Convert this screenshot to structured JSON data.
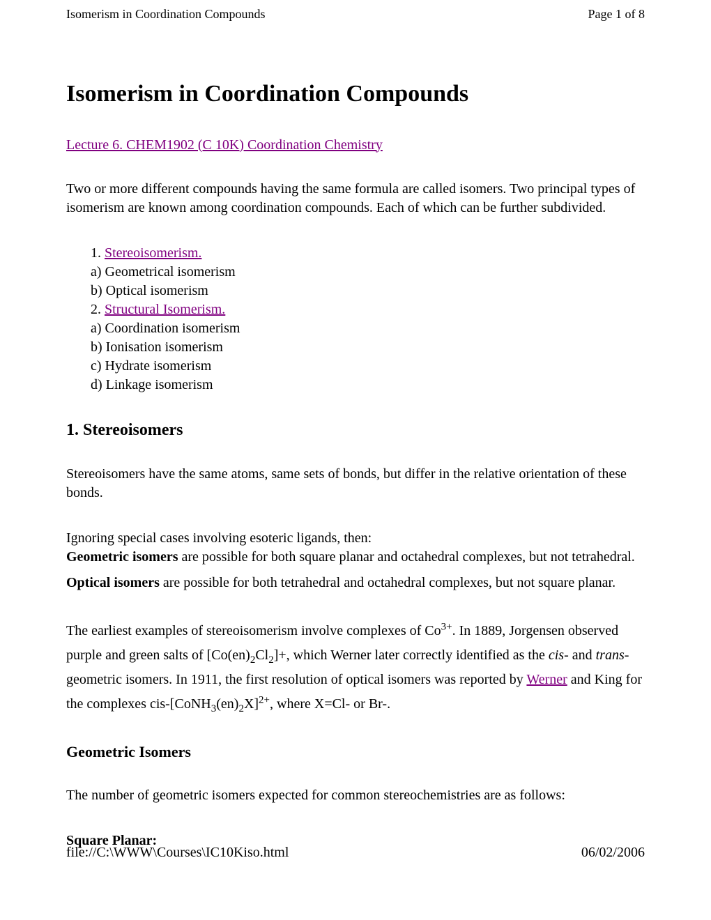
{
  "header": {
    "title": "Isomerism in Coordination Compounds",
    "page_info": "Page 1 of 8"
  },
  "main_title": "Isomerism in Coordination Compounds",
  "lecture_link": "Lecture 6. CHEM1902 (C 10K) Coordination Chemistry",
  "intro": "Two or more different compounds having the same formula are called isomers. Two principal types of isomerism are known among coordination compounds. Each of which can be further subdivided.",
  "outline": {
    "num1": "1. ",
    "link1": "Stereoisomerism.",
    "item1a": "a) Geometrical isomerism",
    "item1b": "b) Optical isomerism",
    "num2": "2. ",
    "link2": "Structural Isomerism.",
    "item2a": "a) Coordination isomerism",
    "item2b": "b) Ionisation isomerism",
    "item2c": "c) Hydrate isomerism",
    "item2d": "d) Linkage isomerism"
  },
  "section1": {
    "heading": "1. Stereoisomers",
    "p1": "Stereoisomers have the same atoms, same sets of bonds, but differ in the relative orientation of these bonds.",
    "p2_line1": "Ignoring special cases involving esoteric ligands, then:",
    "p2_bold": "Geometric isomers",
    "p2_rest": " are possible for both square planar and octahedral complexes, but not tetrahedral.",
    "p3_bold": "Optical isomers",
    "p3_rest": " are possible for both tetrahedral and octahedral complexes, but not square planar.",
    "p4_a": "The earliest examples of stereoisomerism involve complexes of Co",
    "p4_sup1": "3+",
    "p4_b": ". In 1889, Jorgensen observed purple and green salts of [Co(en)",
    "p4_sub1": "2",
    "p4_c": "Cl",
    "p4_sub2": "2",
    "p4_d": "]+, which Werner later correctly identified as the ",
    "p4_cis": "cis",
    "p4_e": "- and ",
    "p4_trans": "trans",
    "p4_f": "- geometric isomers. In 1911, the first resolution of optical isomers was reported by ",
    "p4_werner": "Werner",
    "p4_g": " and King for the complexes cis-[CoNH",
    "p4_sub3": "3",
    "p4_h": "(en)",
    "p4_sub4": "2",
    "p4_i": "X]",
    "p4_sup2": "2+",
    "p4_j": ", where X=Cl- or Br-."
  },
  "section_geo": {
    "heading": "Geometric Isomers",
    "p1": "The number of geometric isomers expected for common stereochemistries are as follows:",
    "sq_planar": "Square Planar:"
  },
  "footer": {
    "path": "file://C:\\WWW\\Courses\\IC10Kiso.html",
    "date": "06/02/2006"
  },
  "colors": {
    "link": "#800080",
    "text": "#000000",
    "bg": "#ffffff"
  }
}
